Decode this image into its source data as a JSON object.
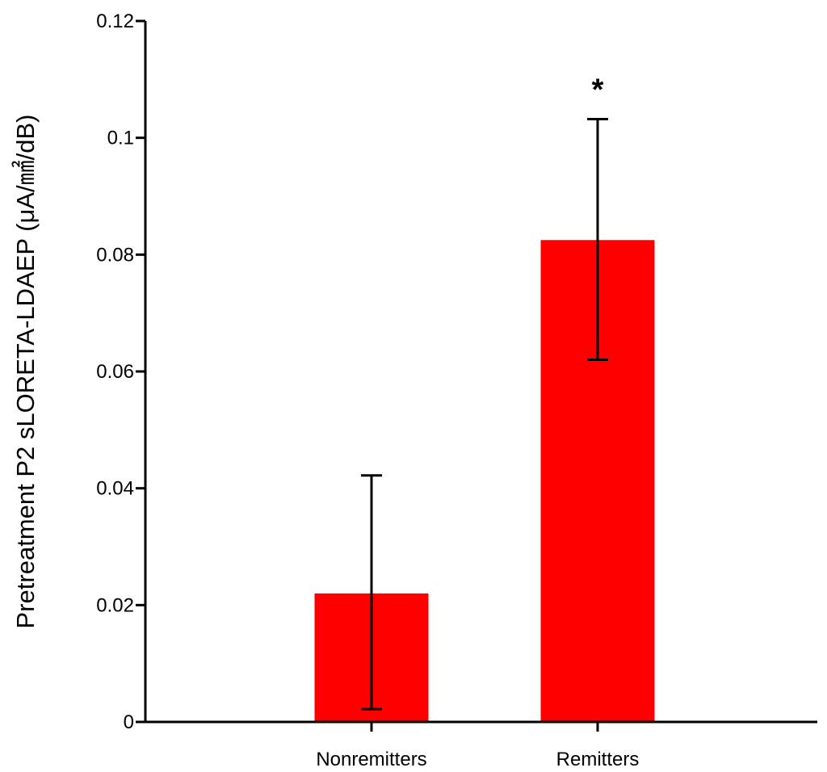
{
  "chart_data": {
    "type": "bar",
    "title": "",
    "xlabel": "",
    "ylabel": "Pretreatment P2 sLORETA-LDAEP (μA/㎟/dB)",
    "categories": [
      "Nonremitters",
      "Remitters"
    ],
    "values": [
      0.022,
      0.0825
    ],
    "error_low": [
      0.0022,
      0.062
    ],
    "error_high": [
      0.0422,
      0.1032
    ],
    "ylim": [
      0,
      0.12
    ],
    "yticks": [
      0,
      0.02,
      0.04,
      0.06,
      0.08,
      0.1,
      0.12
    ],
    "ytick_labels": [
      "0",
      "0.02",
      "0.04",
      "0.06",
      "0.08",
      "0.1",
      "0.12"
    ],
    "annotations": [
      {
        "category": "Remitters",
        "text": "*"
      }
    ],
    "bar_color": "#ff0000",
    "grid": false,
    "legend": "none"
  }
}
